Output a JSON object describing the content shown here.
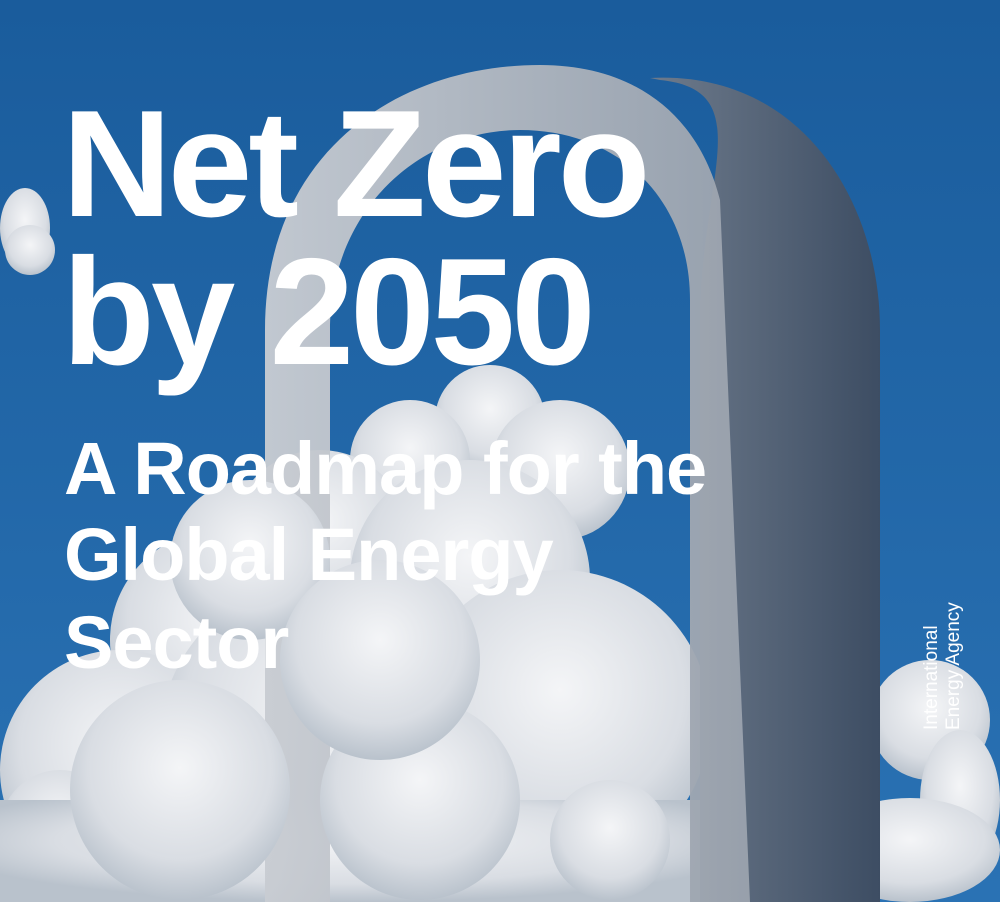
{
  "cover": {
    "title_line1": "Net Zero",
    "title_line2": "by 2050",
    "subtitle_line1": "A Roadmap for the",
    "subtitle_line2": "Global Energy",
    "subtitle_line3": "Sector",
    "publisher_line1": "International",
    "publisher_line2": "Energy Agency"
  },
  "colors": {
    "sky": "#1b5e9e",
    "text": "#ffffff"
  }
}
